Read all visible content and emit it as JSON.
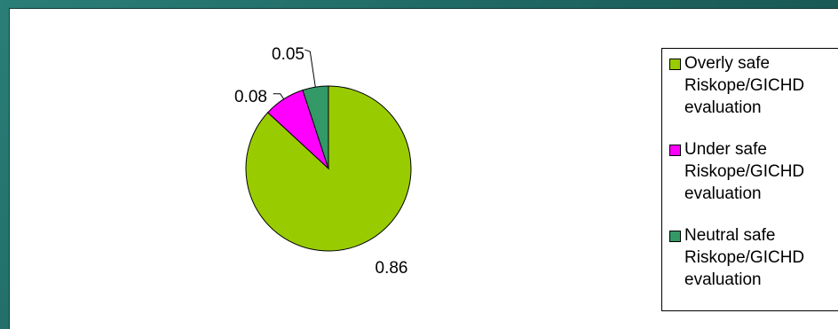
{
  "chart_data": {
    "type": "pie",
    "title": "",
    "slices": [
      {
        "label": "Overly safe Riskope/GICHD evaluation",
        "value": 0.86,
        "value_label": "0.86",
        "color": "#99cc00"
      },
      {
        "label": "Under safe Riskope/GICHD evaluation",
        "value": 0.08,
        "value_label": "0.08",
        "color": "#ff00ff"
      },
      {
        "label": "Neutral safe Riskope/GICHD evaluation",
        "value": 0.05,
        "value_label": "0.05",
        "color": "#339966"
      }
    ],
    "legend": {
      "placement": "right",
      "entries": [
        "Overly safe\nRiskope/GICHD\nevaluation",
        "Under safe\nRiskope/GICHD\nevaluation",
        "Neutral safe\nRiskope/GICHD\nevaluation"
      ]
    }
  }
}
